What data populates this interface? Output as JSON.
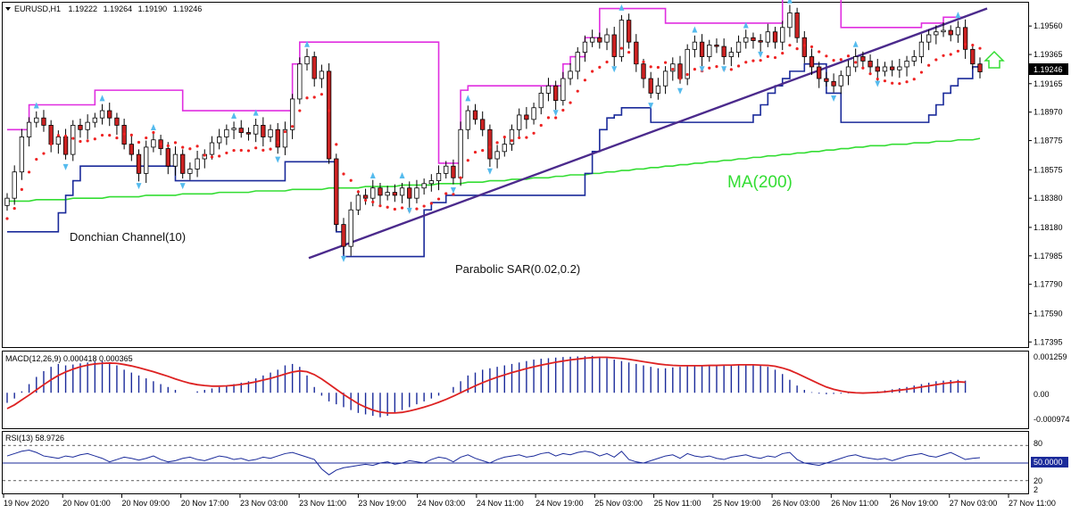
{
  "colors": {
    "bull_candle": "#ffffff",
    "bear_candle": "#cc2222",
    "candle_outline": "#000000",
    "donchian_upper": "#e02ee0",
    "donchian_lower": "#1a2a9a",
    "sar": "#ee2222",
    "ma200": "#33dd33",
    "trendline": "#4b2a8c",
    "fractal": "#55bbee",
    "macd_hist": "#1a2a9a",
    "macd_signal": "#dd2222",
    "rsi_line": "#1a2a9a",
    "rsi_mid": "#1a2a9a",
    "arrow": "#33dd33",
    "price_box": "#000000"
  },
  "header": {
    "symbol": "EURUSD,H1",
    "open": "1.19222",
    "high": "1.19264",
    "low": "1.19190",
    "close": "1.19246"
  },
  "annotations": {
    "donchian": "Donchian Channel(10)",
    "sar": "Parabolic SAR(0.02,0.2)",
    "ma": "MA(200)"
  },
  "macd_panel": {
    "label": "MACD(12,26,9) 0.000418 0.000365",
    "ticks": [
      "0.001259",
      "0.00",
      "-0.000974"
    ]
  },
  "rsi_panel": {
    "label": "RSI(13) 58.9726",
    "ticks": [
      "80",
      "20",
      "2"
    ],
    "current": "50.0000"
  },
  "price_axis": {
    "ticks": [
      "1.19560",
      "1.19365",
      "1.19165",
      "1.18970",
      "1.18775",
      "1.18575",
      "1.18380",
      "1.18180",
      "1.17985",
      "1.17790",
      "1.17590",
      "1.17395"
    ],
    "current": "1.19246"
  },
  "time_axis": [
    "19 Nov 2020",
    "20 Nov 01:00",
    "20 Nov 09:00",
    "20 Nov 17:00",
    "23 Nov 03:00",
    "23 Nov 11:00",
    "23 Nov 19:00",
    "24 Nov 03:00",
    "24 Nov 11:00",
    "24 Nov 19:00",
    "25 Nov 03:00",
    "25 Nov 11:00",
    "25 Nov 19:00",
    "26 Nov 03:00",
    "26 Nov 11:00",
    "26 Nov 19:00",
    "27 Nov 03:00",
    "27 Nov 11:00"
  ],
  "chart_data": {
    "type": "candlestick",
    "ylim": [
      1.1736,
      1.1972
    ],
    "closes": [
      1.1838,
      1.1856,
      1.188,
      1.189,
      1.1893,
      1.1888,
      1.1875,
      1.188,
      1.1868,
      1.1888,
      1.1885,
      1.189,
      1.1893,
      1.1898,
      1.1893,
      1.1888,
      1.1875,
      1.1868,
      1.1855,
      1.1873,
      1.1878,
      1.1872,
      1.186,
      1.1868,
      1.1855,
      1.1858,
      1.1865,
      1.1868,
      1.1876,
      1.188,
      1.1885,
      1.1886,
      1.1883,
      1.1882,
      1.1888,
      1.188,
      1.1885,
      1.1873,
      1.1885,
      1.1906,
      1.193,
      1.1935,
      1.192,
      1.1925,
      1.1865,
      1.182,
      1.1805,
      1.183,
      1.184,
      1.1838,
      1.1845,
      1.184,
      1.1842,
      1.184,
      1.1845,
      1.1838,
      1.1845,
      1.1848,
      1.185,
      1.1855,
      1.186,
      1.1852,
      1.1885,
      1.1898,
      1.1892,
      1.1885,
      1.1865,
      1.187,
      1.1875,
      1.1885,
      1.1895,
      1.1892,
      1.19,
      1.191,
      1.1915,
      1.1905,
      1.192,
      1.1925,
      1.1938,
      1.1945,
      1.1948,
      1.1945,
      1.195,
      1.1935,
      1.196,
      1.1945,
      1.193,
      1.192,
      1.191,
      1.1915,
      1.1925,
      1.193,
      1.192,
      1.194,
      1.1945,
      1.1935,
      1.1943,
      1.1942,
      1.1935,
      1.1938,
      1.1945,
      1.1948,
      1.1946,
      1.1945,
      1.1952,
      1.1945,
      1.1955,
      1.1965,
      1.1948,
      1.1935,
      1.1928,
      1.192,
      1.1918,
      1.1915,
      1.1922,
      1.1928,
      1.1935,
      1.1932,
      1.1928,
      1.1925,
      1.1928,
      1.1926,
      1.1928,
      1.1932,
      1.1935,
      1.1945,
      1.195,
      1.1952,
      1.1953,
      1.195,
      1.1955,
      1.194,
      1.193,
      1.19246
    ],
    "donchian_upper": [
      1.1885,
      1.1885,
      1.1885,
      1.1902,
      1.1902,
      1.1902,
      1.1902,
      1.1902,
      1.1902,
      1.1902,
      1.1902,
      1.1902,
      1.1912,
      1.1912,
      1.1912,
      1.1912,
      1.1912,
      1.1912,
      1.1912,
      1.1912,
      1.1912,
      1.1912,
      1.1912,
      1.1912,
      1.1898,
      1.1898,
      1.1898,
      1.1898,
      1.1898,
      1.1898,
      1.1898,
      1.1898,
      1.1898,
      1.1898,
      1.1898,
      1.1898,
      1.1898,
      1.1898,
      1.1898,
      1.193,
      1.1945,
      1.1945,
      1.1945,
      1.1945,
      1.1945,
      1.1945,
      1.1945,
      1.1945,
      1.1945,
      1.1945,
      1.1945,
      1.1945,
      1.1945,
      1.1945,
      1.1945,
      1.1945,
      1.1945,
      1.1945,
      1.1945,
      1.1862,
      1.1862,
      1.1862,
      1.1912,
      1.1915,
      1.1915,
      1.1915,
      1.1915,
      1.1915,
      1.1915,
      1.1915,
      1.1915,
      1.1915,
      1.1915,
      1.1915,
      1.1915,
      1.1915,
      1.193,
      1.1935,
      1.1935,
      1.1948,
      1.1948,
      1.1968,
      1.1968,
      1.1968,
      1.1968,
      1.1968,
      1.1968,
      1.1968,
      1.1968,
      1.1968,
      1.1958,
      1.1958,
      1.1958,
      1.1958,
      1.1958,
      1.1958,
      1.1958,
      1.1958,
      1.1958,
      1.1958,
      1.1958,
      1.1958,
      1.1958,
      1.1958,
      1.1958,
      1.1958,
      1.1975,
      1.1975,
      1.1975,
      1.1975,
      1.1975,
      1.1975,
      1.1975,
      1.1975,
      1.1955,
      1.1955,
      1.1955,
      1.1955,
      1.1955,
      1.1955,
      1.1955,
      1.1955,
      1.1955,
      1.1955,
      1.1955,
      1.1958,
      1.1958,
      1.1958,
      1.1962,
      1.1962,
      1.1962,
      1.1962
    ],
    "donchian_lower": [
      1.1815,
      1.1815,
      1.1815,
      1.1815,
      1.1815,
      1.1815,
      1.1815,
      1.1828,
      1.184,
      1.185,
      1.186,
      1.186,
      1.186,
      1.186,
      1.186,
      1.186,
      1.186,
      1.186,
      1.186,
      1.186,
      1.186,
      1.186,
      1.186,
      1.185,
      1.185,
      1.185,
      1.185,
      1.185,
      1.185,
      1.185,
      1.185,
      1.185,
      1.185,
      1.185,
      1.185,
      1.185,
      1.185,
      1.185,
      1.1863,
      1.1863,
      1.1863,
      1.1863,
      1.1863,
      1.1863,
      1.1863,
      1.1815,
      1.1798,
      1.1798,
      1.1798,
      1.1798,
      1.1798,
      1.1798,
      1.1798,
      1.1798,
      1.1798,
      1.1798,
      1.1798,
      1.183,
      1.1835,
      1.1835,
      1.184,
      1.184,
      1.184,
      1.184,
      1.184,
      1.184,
      1.184,
      1.184,
      1.184,
      1.184,
      1.184,
      1.184,
      1.184,
      1.184,
      1.184,
      1.184,
      1.184,
      1.184,
      1.184,
      1.1855,
      1.187,
      1.1885,
      1.1893,
      1.1895,
      1.19,
      1.19,
      1.19,
      1.19,
      1.189,
      1.189,
      1.189,
      1.189,
      1.189,
      1.189,
      1.189,
      1.189,
      1.189,
      1.189,
      1.189,
      1.189,
      1.189,
      1.189,
      1.1895,
      1.1902,
      1.191,
      1.1915,
      1.192,
      1.1925,
      1.1925,
      1.193,
      1.193,
      1.193,
      1.191,
      1.191,
      1.189,
      1.189,
      1.189,
      1.189,
      1.189,
      1.189,
      1.189,
      1.189,
      1.189,
      1.189,
      1.189,
      1.189,
      1.1895,
      1.1902,
      1.191,
      1.1915,
      1.192,
      1.192,
      1.1928,
      1.1928
    ],
    "ma200": [
      1.1836,
      1.1836,
      1.1836,
      1.1836,
      1.1837,
      1.1837,
      1.1837,
      1.1837,
      1.1837,
      1.1838,
      1.1838,
      1.1838,
      1.1838,
      1.1838,
      1.1839,
      1.1839,
      1.1839,
      1.1839,
      1.1839,
      1.184,
      1.184,
      1.184,
      1.184,
      1.184,
      1.1841,
      1.1841,
      1.1841,
      1.1841,
      1.1841,
      1.1842,
      1.1842,
      1.1842,
      1.1842,
      1.1842,
      1.1843,
      1.1843,
      1.1843,
      1.1843,
      1.1843,
      1.1844,
      1.1844,
      1.1844,
      1.1844,
      1.1844,
      1.1845,
      1.1845,
      1.1845,
      1.1845,
      1.1845,
      1.1846,
      1.1846,
      1.1846,
      1.1846,
      1.1846,
      1.1847,
      1.1847,
      1.1847,
      1.1847,
      1.1847,
      1.1848,
      1.1848,
      1.1848,
      1.1848,
      1.1849,
      1.1849,
      1.1849,
      1.185,
      1.185,
      1.185,
      1.1851,
      1.1851,
      1.1851,
      1.1852,
      1.1852,
      1.1852,
      1.1853,
      1.1853,
      1.1854,
      1.1854,
      1.1854,
      1.1855,
      1.1855,
      1.1856,
      1.1856,
      1.1857,
      1.1857,
      1.1858,
      1.1858,
      1.1859,
      1.1859,
      1.186,
      1.186,
      1.1861,
      1.1861,
      1.1862,
      1.1862,
      1.1863,
      1.1863,
      1.1864,
      1.1864,
      1.1865,
      1.1865,
      1.1866,
      1.1866,
      1.1867,
      1.1867,
      1.1868,
      1.1868,
      1.1869,
      1.1869,
      1.187,
      1.187,
      1.1871,
      1.1871,
      1.1872,
      1.1872,
      1.1873,
      1.1873,
      1.1874,
      1.1874,
      1.1874,
      1.1875,
      1.1875,
      1.1875,
      1.1876,
      1.1876,
      1.1876,
      1.1877,
      1.1877,
      1.1877,
      1.1878,
      1.1878,
      1.1878,
      1.1879
    ],
    "trendline": {
      "x": [
        0,
        1
      ],
      "y": [
        1.1797,
        1.1968
      ]
    },
    "macd_hist": [
      -0.00035,
      -0.0002,
      5e-05,
      0.0003,
      0.00055,
      0.00075,
      0.0009,
      0.001,
      0.00095,
      0.00098,
      0.00102,
      0.00105,
      0.00108,
      0.0011,
      0.001,
      0.00095,
      0.0008,
      0.0007,
      0.0006,
      0.0005,
      0.0004,
      0.0003,
      0.0002,
      0.0001,
      0.0,
      0.0,
      5e-05,
      0.0001,
      0.00015,
      0.0002,
      0.00025,
      0.0003,
      0.00035,
      0.0004,
      0.0005,
      0.0006,
      0.0007,
      0.0008,
      0.00095,
      0.001,
      0.0009,
      0.0006,
      0.0002,
      -0.0001,
      -0.0003,
      -0.0004,
      -0.0005,
      -0.0006,
      -0.0007,
      -0.00075,
      -0.0008,
      -0.00085,
      -0.0008,
      -0.0007,
      -0.0006,
      -0.0005,
      -0.0004,
      -0.0003,
      -0.0002,
      -0.0001,
      0.0,
      0.0002,
      0.0004,
      0.0006,
      0.0007,
      0.0008,
      0.00085,
      0.0009,
      0.00095,
      0.001,
      0.00105,
      0.0011,
      0.00115,
      0.00118,
      0.0012,
      0.00122,
      0.00124,
      0.00125,
      0.00126,
      0.00127,
      0.00128,
      0.00125,
      0.0012,
      0.00115,
      0.0011,
      0.00105,
      0.001,
      0.00095,
      0.0009,
      0.00085,
      0.00085,
      0.00088,
      0.0009,
      0.00092,
      0.00094,
      0.00095,
      0.00095,
      0.00096,
      0.00097,
      0.00098,
      0.00098,
      0.00098,
      0.00097,
      0.00095,
      0.0009,
      0.0008,
      0.00065,
      0.00045,
      0.00025,
      0.0001,
      2e-05,
      -3e-05,
      -5e-05,
      -4e-05,
      -3e-05,
      -2e-05,
      -1e-05,
      0.0,
      2e-05,
      5e-05,
      8e-05,
      0.00012,
      0.00016,
      0.0002,
      0.00025,
      0.0003,
      0.00035,
      0.0004,
      0.00042,
      0.00044,
      0.00045,
      0.00042
    ],
    "macd_signal": [
      -0.00055,
      -0.00042,
      -0.00025,
      -8e-05,
      0.0001,
      0.00028,
      0.00045,
      0.0006,
      0.00072,
      0.00082,
      0.0009,
      0.00096,
      0.001,
      0.00102,
      0.00103,
      0.00102,
      0.00098,
      0.00093,
      0.00087,
      0.0008,
      0.00073,
      0.00065,
      0.00057,
      0.00048,
      0.0004,
      0.00033,
      0.00028,
      0.00025,
      0.00023,
      0.00023,
      0.00024,
      0.00026,
      0.00029,
      0.00033,
      0.00038,
      0.00044,
      0.0005,
      0.00057,
      0.00065,
      0.00072,
      0.00076,
      0.00073,
      0.00063,
      0.00048,
      0.0003,
      0.00012,
      -6e-05,
      -0.00022,
      -0.00038,
      -0.0005,
      -0.0006,
      -0.00067,
      -0.0007,
      -0.0007,
      -0.00068,
      -0.00063,
      -0.00057,
      -0.0005,
      -0.00042,
      -0.00033,
      -0.00023,
      -0.00012,
      0.0,
      0.00012,
      0.00024,
      0.00035,
      0.00045,
      0.00054,
      0.00062,
      0.0007,
      0.00077,
      0.00084,
      0.0009,
      0.00096,
      0.00101,
      0.00106,
      0.0011,
      0.00114,
      0.00117,
      0.0012,
      0.00122,
      0.00123,
      0.00123,
      0.00121,
      0.00119,
      0.00116,
      0.00112,
      0.00108,
      0.00104,
      0.001,
      0.00097,
      0.00095,
      0.00094,
      0.00094,
      0.00094,
      0.00094,
      0.00095,
      0.00095,
      0.00096,
      0.00096,
      0.00097,
      0.00097,
      0.00097,
      0.00096,
      0.00095,
      0.00092,
      0.00086,
      0.00078,
      0.00067,
      0.00055,
      0.00043,
      0.00031,
      0.0002,
      0.00012,
      6e-05,
      2e-05,
      0.0,
      -1e-05,
      0.0,
      1e-05,
      3e-05,
      6e-05,
      9e-05,
      0.00012,
      0.00016,
      0.0002,
      0.00024,
      0.00028,
      0.00032,
      0.00035,
      0.00038,
      0.000365
    ],
    "macd_ylim": [
      -0.0012,
      0.0014
    ],
    "rsi": [
      62,
      66,
      70,
      72,
      68,
      62,
      60,
      58,
      62,
      60,
      64,
      66,
      62,
      58,
      52,
      56,
      60,
      58,
      55,
      58,
      62,
      56,
      52,
      54,
      58,
      60,
      56,
      54,
      58,
      62,
      60,
      56,
      58,
      54,
      56,
      60,
      58,
      62,
      66,
      68,
      64,
      60,
      56,
      40,
      30,
      38,
      42,
      44,
      46,
      48,
      46,
      50,
      52,
      48,
      50,
      54,
      52,
      50,
      56,
      60,
      58,
      52,
      60,
      64,
      58,
      54,
      50,
      56,
      60,
      62,
      64,
      60,
      62,
      66,
      68,
      62,
      66,
      64,
      68,
      70,
      68,
      62,
      66,
      60,
      70,
      56,
      52,
      50,
      54,
      58,
      62,
      64,
      58,
      66,
      62,
      60,
      62,
      58,
      56,
      60,
      62,
      64,
      60,
      58,
      62,
      60,
      66,
      68,
      56,
      50,
      48,
      46,
      50,
      54,
      58,
      62,
      64,
      60,
      58,
      56,
      58,
      54,
      58,
      62,
      64,
      66,
      62,
      60,
      64,
      68,
      62,
      56,
      58,
      59
    ],
    "rsi_ylim": [
      0,
      100
    ]
  }
}
